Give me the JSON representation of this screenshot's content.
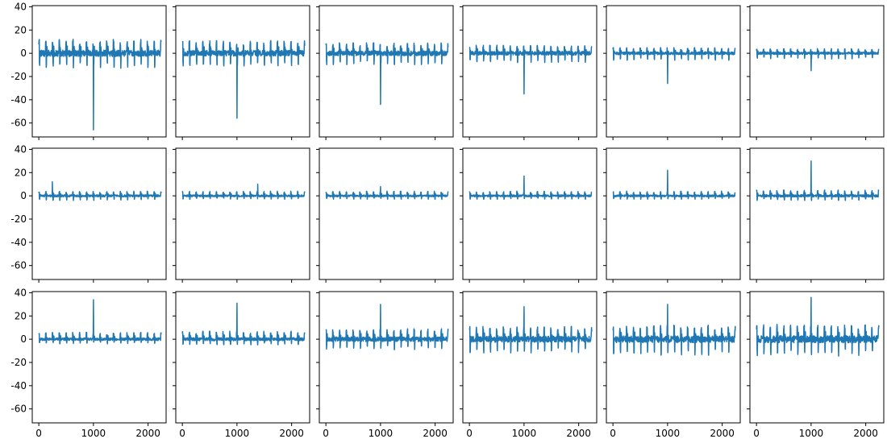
{
  "figure": {
    "layout": "3x6 grid of small-multiple line plots, shared x and y axes",
    "line_color": "#1f77b4",
    "frame_color": "#000000",
    "background": "#ffffff"
  },
  "axes": {
    "x_range": [
      -120,
      2330
    ],
    "y_range": [
      -72,
      41
    ],
    "x_ticks": [
      0,
      1000,
      2000
    ],
    "x_tick_labels": [
      "0",
      "1000",
      "2000"
    ],
    "y_ticks": [
      40,
      20,
      0,
      -20,
      -40,
      -60
    ],
    "y_tick_labels": [
      "40",
      "20",
      "0",
      "-20",
      "-40",
      "-60"
    ],
    "x_tick_labels_shown_on": "bottom row only",
    "y_tick_labels_shown_on": "left column only",
    "grid": false
  },
  "chart_data": {
    "type": "line",
    "xlabel": "",
    "ylabel": "",
    "title": "",
    "x_domain": [
      0,
      2240
    ],
    "periodic_pattern": "about 18 repeating oscillation cycles across x, with one isolated spike near x = 1000",
    "spike_x": 1000,
    "panels": [
      {
        "row": 0,
        "col": 0,
        "amp_upper": 12,
        "amp_lower": -13,
        "spike_at": 1000,
        "spike_value": -66
      },
      {
        "row": 0,
        "col": 1,
        "amp_upper": 11,
        "amp_lower": -11,
        "spike_at": 1000,
        "spike_value": -56
      },
      {
        "row": 0,
        "col": 2,
        "amp_upper": 9,
        "amp_lower": -10,
        "spike_at": 1000,
        "spike_value": -44
      },
      {
        "row": 0,
        "col": 3,
        "amp_upper": 7,
        "amp_lower": -8,
        "spike_at": 1000,
        "spike_value": -35
      },
      {
        "row": 0,
        "col": 4,
        "amp_upper": 5,
        "amp_lower": -6,
        "spike_at": 1000,
        "spike_value": -26
      },
      {
        "row": 0,
        "col": 5,
        "amp_upper": 4,
        "amp_lower": -5,
        "spike_at": 1000,
        "spike_value": -15
      },
      {
        "row": 1,
        "col": 0,
        "amp_upper": 4,
        "amp_lower": -4,
        "spike_at": 250,
        "spike_value": 12
      },
      {
        "row": 1,
        "col": 1,
        "amp_upper": 4,
        "amp_lower": -3,
        "spike_at": 1380,
        "spike_value": 10
      },
      {
        "row": 1,
        "col": 2,
        "amp_upper": 4,
        "amp_lower": -3,
        "spike_at": 1000,
        "spike_value": 8
      },
      {
        "row": 1,
        "col": 3,
        "amp_upper": 4,
        "amp_lower": -3,
        "spike_at": 1000,
        "spike_value": 17
      },
      {
        "row": 1,
        "col": 4,
        "amp_upper": 4,
        "amp_lower": -3,
        "spike_at": 1000,
        "spike_value": 22
      },
      {
        "row": 1,
        "col": 5,
        "amp_upper": 5,
        "amp_lower": -4,
        "spike_at": 1000,
        "spike_value": 30
      },
      {
        "row": 2,
        "col": 0,
        "amp_upper": 6,
        "amp_lower": -4,
        "spike_at": 1000,
        "spike_value": 34
      },
      {
        "row": 2,
        "col": 1,
        "amp_upper": 7,
        "amp_lower": -5,
        "spike_at": 1000,
        "spike_value": 31
      },
      {
        "row": 2,
        "col": 2,
        "amp_upper": 9,
        "amp_lower": -9,
        "spike_at": 1000,
        "spike_value": 30
      },
      {
        "row": 2,
        "col": 3,
        "amp_upper": 11,
        "amp_lower": -12,
        "spike_at": 1000,
        "spike_value": 28
      },
      {
        "row": 2,
        "col": 4,
        "amp_upper": 12,
        "amp_lower": -14,
        "spike_at": 1000,
        "spike_value": 30
      },
      {
        "row": 2,
        "col": 5,
        "amp_upper": 13,
        "amp_lower": -15,
        "spike_at": 1000,
        "spike_value": 36
      }
    ]
  }
}
